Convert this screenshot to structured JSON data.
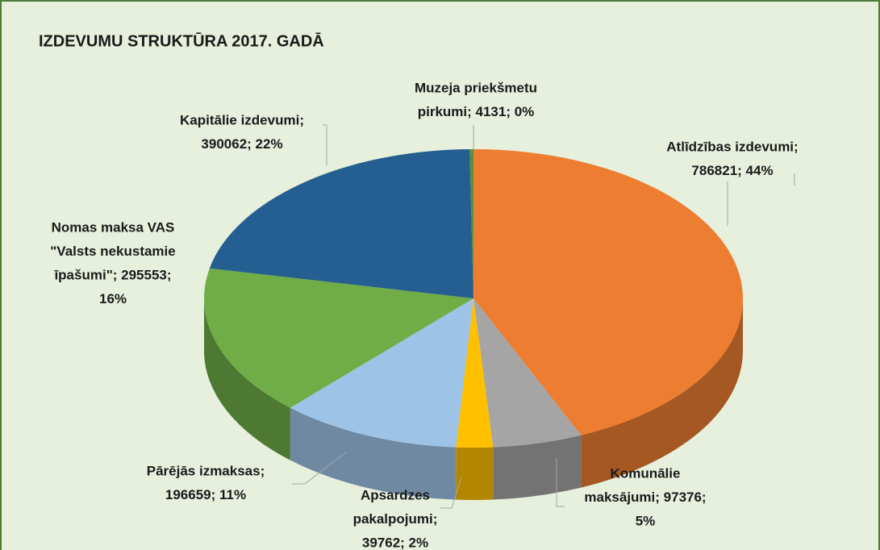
{
  "chart_data": {
    "type": "pie3d",
    "title": "IZDEVUMU STRUKTŪRA 2017. GADĀ",
    "values": [
      786821,
      97376,
      39762,
      196659,
      295553,
      390062,
      4131
    ],
    "value_labels": [
      [
        "Atlīdzības izdevumi;",
        "786821; 44%"
      ],
      [
        "Komunālie",
        "maksājumi; 97376;",
        "5%"
      ],
      [
        "Apsardzes",
        "pakalpojumi;",
        "39762; 2%"
      ],
      [
        "Pārējās izmaksas;",
        "196659; 11%"
      ],
      [
        "Nomas maksa VAS",
        "\"Valsts nekustamie",
        "īpašumi\"; 295553;",
        "16%"
      ],
      [
        "Kapitālie izdevumi;",
        "390062; 22%"
      ],
      [
        "Muzeja priekšmetu",
        "pirkumi; 4131; 0%"
      ]
    ],
    "colors": [
      "#ed7d31",
      "#a5a5a5",
      "#ffc000",
      "#9dc3e6",
      "#70ad47",
      "#255e91",
      "#5b8f3a"
    ]
  }
}
